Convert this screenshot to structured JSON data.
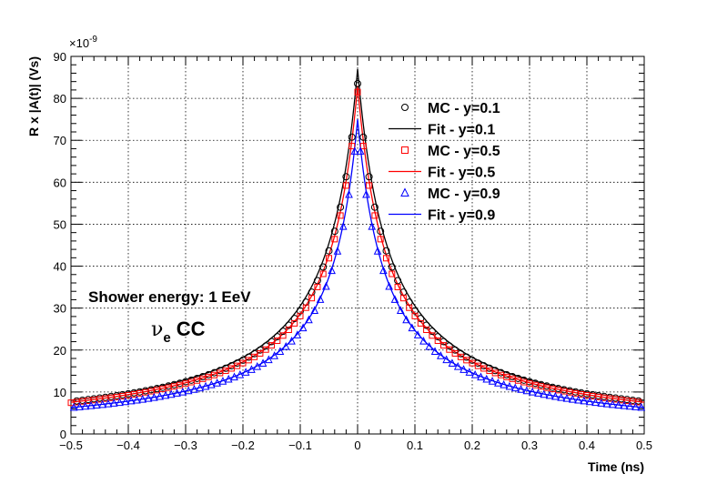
{
  "chart_data": {
    "type": "scatter",
    "title": "",
    "xlabel": "Time (ns)",
    "ylabel": "R x |A(t)| (Vs)",
    "y_exponent": "×10",
    "y_exponent_power": "-9",
    "xlim": [
      -0.5,
      0.5
    ],
    "ylim": [
      0,
      90
    ],
    "grid": true,
    "x_ticks": [
      "−0.5",
      "−0.4",
      "−0.3",
      "−0.2",
      "−0.1",
      "0",
      "0.1",
      "0.2",
      "0.3",
      "0.4",
      "0.5"
    ],
    "y_ticks": [
      "0",
      "10",
      "20",
      "30",
      "40",
      "50",
      "60",
      "70",
      "80",
      "90"
    ],
    "legend_position": "top-right",
    "annotations": {
      "energy": "Shower energy: 1 EeV",
      "channel_nu": "ν",
      "channel_sub": "e",
      "channel_cc": "CC"
    },
    "series": [
      {
        "name": "MC - y=0.1",
        "kind": "markers",
        "marker": "circle",
        "color": "#000000",
        "peak": 83.5,
        "tau_left": 0.06,
        "tau_right": 0.06,
        "tail": 2.0,
        "beta": 1.1
      },
      {
        "name": "Fit - y=0.1",
        "kind": "line",
        "color": "#000000",
        "peak": 87.0,
        "tau_left": 0.06,
        "tau_right": 0.06,
        "tail": 2.0,
        "beta": 1.1
      },
      {
        "name": "MC - y=0.5",
        "kind": "markers",
        "marker": "square",
        "color": "#ff0000",
        "peak": 81.5,
        "tau_left": 0.057,
        "tau_right": 0.057,
        "tail": 2.8,
        "beta": 1.1
      },
      {
        "name": "Fit - y=0.5",
        "kind": "line",
        "color": "#ff0000",
        "peak": 83.0,
        "tau_left": 0.057,
        "tau_right": 0.057,
        "tail": 2.8,
        "beta": 1.1
      },
      {
        "name": "MC - y=0.9",
        "kind": "markers",
        "marker": "triangle",
        "color": "#0000ff",
        "peak": 74.0,
        "tau_left": 0.055,
        "tau_right": 0.055,
        "tail": 1.4,
        "beta": 1.1
      },
      {
        "name": "Fit - y=0.9",
        "kind": "line",
        "color": "#0000ff",
        "peak": 75.0,
        "tau_left": 0.055,
        "tau_right": 0.055,
        "tail": 1.4,
        "beta": 1.1
      }
    ],
    "marker_offsets": {
      "MC - y=0.1": 0.01,
      "MC - y=0.5": 0.0,
      "MC - y=0.9": -0.005
    },
    "marker_step": 0.01
  }
}
